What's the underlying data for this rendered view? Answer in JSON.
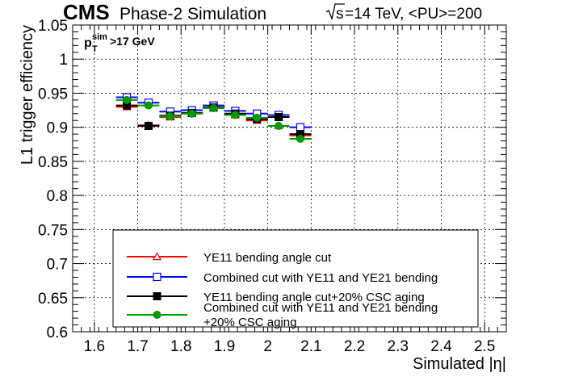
{
  "header": {
    "experiment": "CMS",
    "subtitle": "Phase-2 Simulation",
    "energy_sqrt": "s",
    "energy_rest": "=14 TeV, <PU>=200"
  },
  "cut_label": {
    "p": "p",
    "sup": "sim",
    "sub": "T",
    "rest": ">17 GeV"
  },
  "chart_data": {
    "type": "scatter",
    "xlabel": "Simulated |η|",
    "ylabel": "L1 trigger efficiency",
    "xlim": [
      1.55,
      2.55
    ],
    "ylim": [
      0.6,
      1.05
    ],
    "x_ticks": [
      1.6,
      1.7,
      1.8,
      1.9,
      2.0,
      2.1,
      2.2,
      2.3,
      2.4,
      2.5
    ],
    "x_tick_labels": [
      "1.6",
      "1.7",
      "1.8",
      "1.9",
      "2",
      "2.1",
      "2.2",
      "2.3",
      "2.4",
      "2.5"
    ],
    "y_ticks": [
      0.6,
      0.65,
      0.7,
      0.75,
      0.8,
      0.85,
      0.9,
      0.95,
      1.0,
      1.05
    ],
    "y_tick_labels": [
      "0.6",
      "0.65",
      "0.7",
      "0.75",
      "0.8",
      "0.85",
      "0.9",
      "0.95",
      "1",
      "1.05"
    ],
    "grid": true,
    "legend_position": "bottom",
    "bin_half_width": 0.025,
    "x": [
      1.675,
      1.725,
      1.775,
      1.825,
      1.875,
      1.925,
      1.975,
      2.025,
      2.075
    ],
    "series": [
      {
        "name": "YE11 bending angle cut",
        "color": "#ff0000",
        "marker": "open-triangle",
        "values": [
          0.93,
          0.903,
          0.915,
          0.92,
          0.928,
          0.918,
          0.91,
          0.902,
          0.888
        ],
        "errors": [
          0.005,
          0.003,
          0.004,
          0.004,
          0.004,
          0.004,
          0.004,
          0.004,
          0.004
        ]
      },
      {
        "name": "Combined cut with YE11 and YE21 bending",
        "color": "#0000ff",
        "marker": "open-square",
        "values": [
          0.944,
          0.936,
          0.923,
          0.925,
          0.932,
          0.924,
          0.92,
          0.918,
          0.9
        ],
        "errors": [
          0.004,
          0.003,
          0.004,
          0.003,
          0.003,
          0.003,
          0.003,
          0.003,
          0.004
        ]
      },
      {
        "name": "YE11 bending angle cut+20% CSC aging",
        "color": "#000000",
        "marker": "filled-square",
        "values": [
          0.932,
          0.902,
          0.917,
          0.921,
          0.929,
          0.92,
          0.912,
          0.915,
          0.89
        ],
        "errors": [
          0.004,
          0.003,
          0.004,
          0.004,
          0.004,
          0.004,
          0.004,
          0.004,
          0.004
        ]
      },
      {
        "name_lines": [
          "Combined cut with YE11 and YE21 bending",
          "+20% CSC aging"
        ],
        "color": "#009900",
        "marker": "filled-circle",
        "values": [
          0.94,
          0.932,
          0.916,
          0.92,
          0.928,
          0.918,
          0.914,
          0.902,
          0.883
        ],
        "errors": [
          0.004,
          0.003,
          0.004,
          0.004,
          0.004,
          0.004,
          0.004,
          0.004,
          0.004
        ]
      }
    ]
  }
}
